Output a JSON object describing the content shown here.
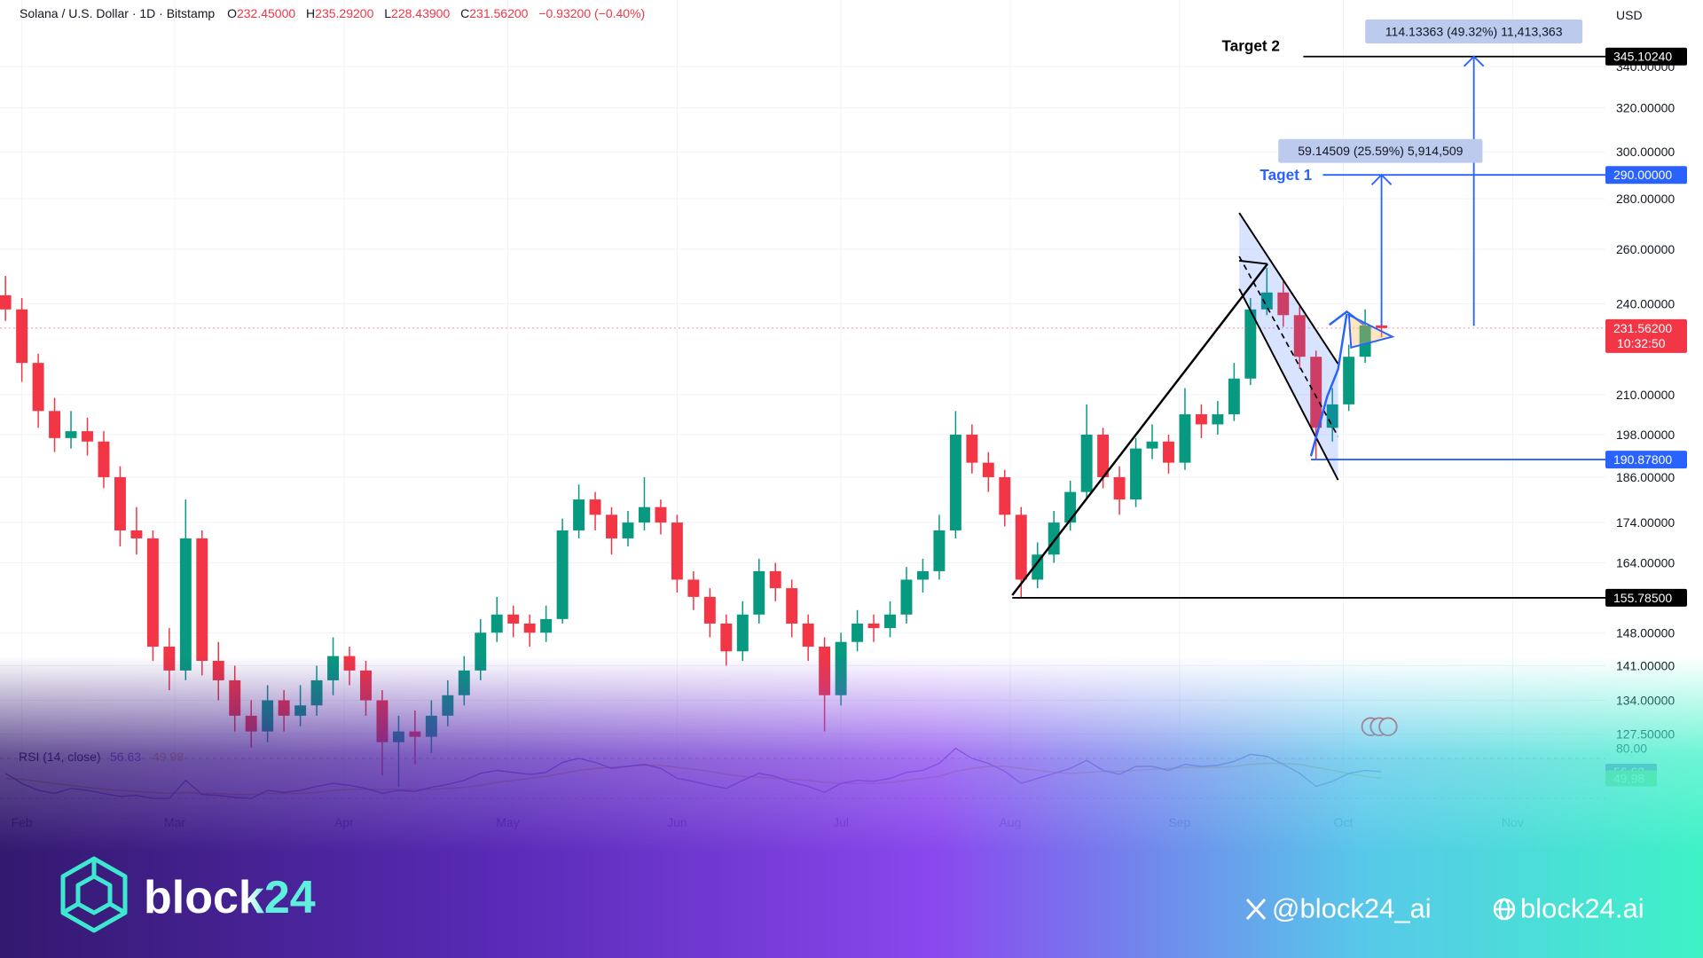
{
  "header": {
    "symbol": "Solana / U.S. Dollar · 1D · Bitstamp",
    "values": [
      {
        "key": "O",
        "value": "232.45000"
      },
      {
        "key": "H",
        "value": "235.29200"
      },
      {
        "key": "L",
        "value": "228.43900"
      },
      {
        "key": "C",
        "value": "231.56200"
      }
    ],
    "change": "−0.93200 (−0.40%)",
    "currency": "USD"
  },
  "chart_data": [
    {
      "type": "candlestick",
      "x": [
        -3,
        0,
        3,
        6,
        9,
        12,
        15,
        18,
        21,
        24,
        27,
        30,
        33,
        36,
        39,
        42,
        45,
        48,
        51,
        54,
        57,
        60,
        63,
        66,
        69,
        72,
        75,
        78,
        81,
        84,
        87,
        90,
        93,
        96,
        99,
        102,
        105,
        108,
        111,
        114,
        117,
        120,
        123,
        126,
        129,
        132,
        135,
        138,
        141,
        144,
        147,
        150,
        153,
        156,
        159,
        162,
        165,
        168,
        171,
        174,
        177,
        180,
        183,
        186,
        189,
        192,
        195,
        198,
        201,
        204,
        207,
        210,
        213,
        216,
        219,
        222,
        225,
        228,
        231,
        234,
        237,
        240,
        243,
        246,
        249
      ],
      "open": [
        243,
        238,
        220,
        205,
        197,
        199,
        196,
        186,
        172,
        170,
        145,
        140,
        170,
        142,
        138,
        131,
        128,
        134,
        131,
        133,
        138,
        143,
        140,
        134,
        126,
        128,
        127,
        131,
        135,
        140,
        148,
        152,
        150,
        148,
        151,
        172,
        180,
        176,
        170,
        174,
        178,
        174,
        160,
        156,
        150,
        144,
        152,
        162,
        158,
        150,
        145,
        135,
        146,
        150,
        149,
        152,
        160,
        162,
        172,
        198,
        190,
        186,
        176,
        160,
        166,
        174,
        182,
        198,
        186,
        180,
        194,
        196,
        190,
        204,
        201,
        204,
        215,
        238,
        244,
        236,
        222,
        200,
        207,
        222,
        232.45
      ],
      "high": [
        250,
        242,
        223,
        209,
        205,
        203,
        199,
        189,
        178,
        172,
        149,
        180,
        172,
        146,
        141,
        134,
        137,
        136,
        137,
        141,
        147,
        145,
        142,
        136,
        131,
        132,
        134,
        138,
        143,
        151,
        156,
        154,
        152,
        154,
        175,
        184,
        182,
        178,
        177,
        186,
        180,
        176,
        162,
        158,
        152,
        155,
        165,
        164,
        160,
        152,
        147,
        148,
        153,
        152,
        155,
        163,
        165,
        176,
        205,
        201,
        193,
        188,
        178,
        169,
        177,
        185,
        207,
        200,
        189,
        197,
        201,
        198,
        212,
        207,
        208,
        220,
        242,
        253,
        248,
        239,
        224,
        212,
        226,
        238,
        235.292
      ],
      "low": [
        234,
        214,
        200,
        193,
        194,
        192,
        183,
        168,
        166,
        142,
        136,
        138,
        139,
        134,
        128,
        125,
        126,
        128,
        129,
        131,
        135,
        137,
        131,
        120,
        118,
        122,
        124,
        129,
        133,
        138,
        146,
        147,
        145,
        146,
        150,
        170,
        172,
        166,
        168,
        172,
        171,
        157,
        153,
        147,
        141,
        142,
        150,
        155,
        147,
        142,
        128,
        133,
        144,
        146,
        147,
        150,
        157,
        160,
        170,
        187,
        182,
        173,
        155.785,
        158,
        164,
        172,
        180,
        183,
        176,
        178,
        191,
        187,
        188,
        197,
        198,
        202,
        213,
        236,
        232,
        218,
        190.878,
        196,
        205,
        220,
        228.439
      ],
      "close": [
        238,
        220,
        205,
        197,
        199,
        196,
        186,
        172,
        170,
        145,
        140,
        170,
        142,
        138,
        131,
        128,
        134,
        131,
        133,
        138,
        143,
        140,
        134,
        126,
        128,
        127,
        131,
        135,
        140,
        148,
        152,
        150,
        148,
        151,
        172,
        180,
        176,
        170,
        174,
        178,
        174,
        160,
        156,
        150,
        144,
        152,
        162,
        158,
        150,
        145,
        135,
        146,
        150,
        149,
        152,
        160,
        162,
        172,
        198,
        190,
        186,
        176,
        160,
        166,
        174,
        182,
        198,
        186,
        180,
        194,
        196,
        190,
        204,
        201,
        204,
        215,
        238,
        244,
        236,
        222,
        200,
        207,
        222,
        232.45,
        231.562
      ],
      "up_color": "#089981",
      "down_color": "#f23645",
      "log_scale": true,
      "grid": true,
      "ylim": [
        124,
        375
      ],
      "yticks": [
        {
          "value": 340,
          "label": "340.00000"
        },
        {
          "value": 320,
          "label": "320.00000"
        },
        {
          "value": 300,
          "label": "300.00000"
        },
        {
          "value": 280,
          "label": "280.00000"
        },
        {
          "value": 260,
          "label": "260.00000"
        },
        {
          "value": 240,
          "label": "240.00000"
        },
        {
          "value": 210,
          "label": "210.00000"
        },
        {
          "value": 198,
          "label": "198.00000"
        },
        {
          "value": 186,
          "label": "186.00000"
        },
        {
          "value": 174,
          "label": "174.00000"
        },
        {
          "value": 164,
          "label": "164.00000"
        },
        {
          "value": 148,
          "label": "148.00000"
        },
        {
          "value": 141,
          "label": "141.00000"
        },
        {
          "value": 134,
          "label": "134.00000"
        },
        {
          "value": 127.5,
          "label": "127.50000"
        }
      ],
      "xlim": [
        -4,
        290
      ],
      "xticks": [
        {
          "value": 0,
          "label": "Feb"
        },
        {
          "value": 28,
          "label": "Mar"
        },
        {
          "value": 59,
          "label": "Apr"
        },
        {
          "value": 89,
          "label": "May"
        },
        {
          "value": 120,
          "label": "Jun"
        },
        {
          "value": 150,
          "label": "Jul"
        },
        {
          "value": 181,
          "label": "Aug"
        },
        {
          "value": 212,
          "label": "Sep"
        },
        {
          "value": 242,
          "label": "Oct"
        },
        {
          "value": 273,
          "label": "Nov"
        }
      ],
      "levels": [
        {
          "value": 345.1024,
          "label": "345.10240",
          "color": "#000000"
        },
        {
          "value": 290,
          "label": "290.00000",
          "color": "#2962ff"
        },
        {
          "value": 231.562,
          "label": "231.56200",
          "color": "#f23645"
        },
        {
          "value": 190.878,
          "label": "190.87800",
          "color": "#2962ff"
        },
        {
          "value": 155.785,
          "label": "155.78500",
          "color": "#000000"
        }
      ],
      "countdown": "10:32:50",
      "annotations": {
        "target2": "Target 2",
        "target1": "Taget 1",
        "measure2": "114.13363 (49.32%) 11,413,363",
        "measure1": "59.14509 (25.59%) 5,914,509"
      }
    },
    {
      "type": "line",
      "title": "RSI (14, close)",
      "x": [
        -3,
        0,
        3,
        6,
        9,
        12,
        15,
        18,
        21,
        24,
        27,
        30,
        33,
        36,
        39,
        42,
        45,
        48,
        51,
        54,
        57,
        60,
        63,
        66,
        69,
        72,
        75,
        78,
        81,
        84,
        87,
        90,
        93,
        96,
        99,
        102,
        105,
        108,
        111,
        114,
        117,
        120,
        123,
        126,
        129,
        132,
        135,
        138,
        141,
        144,
        147,
        150,
        153,
        156,
        159,
        162,
        165,
        168,
        171,
        174,
        177,
        180,
        183,
        186,
        189,
        192,
        195,
        198,
        201,
        204,
        207,
        210,
        213,
        216,
        219,
        222,
        225,
        228,
        231,
        234,
        237,
        240,
        243,
        246,
        249
      ],
      "series": [
        {
          "color": "#7e57c2",
          "values": [
            55,
            45,
            38,
            35,
            40,
            38,
            35,
            32,
            33,
            30,
            30,
            48,
            34,
            33,
            31,
            30,
            38,
            36,
            38,
            42,
            45,
            43,
            40,
            35,
            38,
            37,
            41,
            44,
            48,
            55,
            58,
            56,
            54,
            56,
            66,
            70,
            66,
            60,
            62,
            64,
            60,
            50,
            47,
            43,
            40,
            48,
            55,
            52,
            46,
            42,
            36,
            45,
            48,
            47,
            50,
            56,
            58,
            65,
            80,
            70,
            65,
            57,
            45,
            50,
            55,
            60,
            68,
            58,
            54,
            62,
            62,
            58,
            64,
            62,
            63,
            67,
            74,
            72,
            64,
            55,
            42,
            47,
            55,
            58,
            56.63
          ],
          "badge_color": "#7e57c2"
        },
        {
          "color": "#e8b84a",
          "values": [
            50,
            49,
            47,
            45,
            43,
            41,
            39,
            38,
            37,
            36,
            35,
            36,
            35,
            35,
            34,
            34,
            35,
            35,
            35,
            36,
            38,
            39,
            39,
            39,
            39,
            39,
            39,
            40,
            41,
            43,
            46,
            48,
            50,
            52,
            55,
            58,
            60,
            61,
            62,
            63,
            63,
            61,
            59,
            57,
            54,
            52,
            51,
            50,
            49,
            48,
            46,
            45,
            45,
            45,
            46,
            48,
            50,
            52,
            57,
            60,
            62,
            62,
            60,
            58,
            56,
            55,
            56,
            57,
            57,
            58,
            59,
            60,
            61,
            61,
            61,
            62,
            64,
            65,
            65,
            64,
            61,
            58,
            55,
            52,
            49.98
          ],
          "badge_color": "#8fd16a"
        }
      ],
      "ylim": [
        15,
        85
      ],
      "yticks": [
        {
          "value": 80,
          "label": "80.00"
        }
      ],
      "bands": [
        70,
        30
      ]
    }
  ],
  "brand": {
    "logo": "block24",
    "x_handle": "@block24_ai",
    "site": "block24.ai"
  }
}
